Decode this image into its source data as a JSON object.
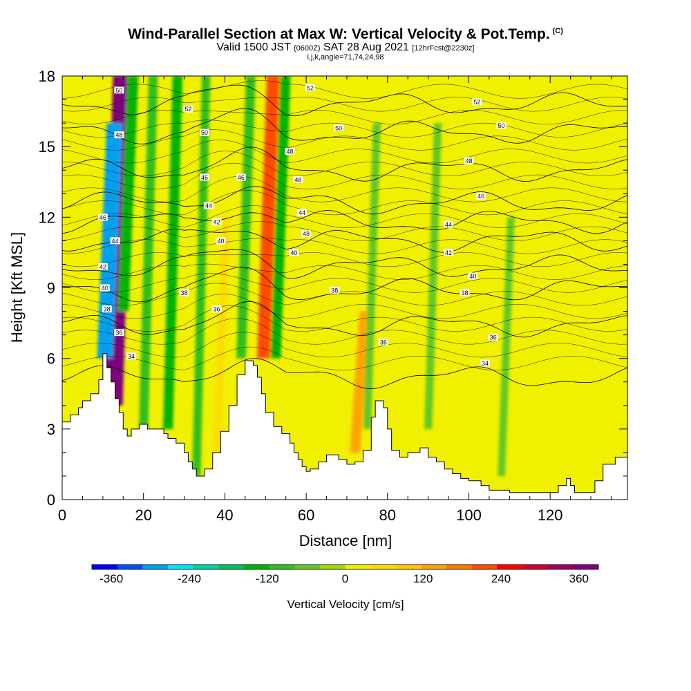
{
  "header": {
    "title": "Wind-Parallel Section at Max W: Vertical Velocity & Pot.Temp.",
    "copyright": "(C)",
    "valid_prefix": "Valid 1500 JST",
    "valid_utc": "(0600Z)",
    "valid_date": "SAT 28 Aug 2021",
    "forecast": "[12hrFcst@2230z]",
    "indices": "i,j,k,angle=71,74,24,98"
  },
  "chart_data": {
    "type": "heatmap",
    "xlabel": "Distance [nm]",
    "ylabel": "Height [Kft MSL]",
    "xlim": [
      0,
      139
    ],
    "ylim": [
      0,
      18
    ],
    "x_ticks": [
      0,
      20,
      40,
      60,
      80,
      100,
      120
    ],
    "y_ticks": [
      0,
      3,
      6,
      9,
      12,
      15,
      18
    ],
    "colorbar": {
      "label": "Vertical Velocity [cm/s]",
      "range": [
        -390,
        390
      ],
      "ticks": [
        -360,
        -240,
        -120,
        0,
        120,
        240,
        360
      ],
      "colors": [
        "#0000ff",
        "#0050f0",
        "#00a0f0",
        "#00e6ff",
        "#00d2a0",
        "#00c060",
        "#00b400",
        "#32be1e",
        "#64c828",
        "#a0dc00",
        "#f0f000",
        "#ffdc00",
        "#ffc800",
        "#ffa500",
        "#ff7800",
        "#ff4b00",
        "#ff0000",
        "#d20032",
        "#a00064",
        "#800080"
      ]
    },
    "terrain_profile": [
      [
        0,
        3.3
      ],
      [
        2,
        3.6
      ],
      [
        4,
        3.9
      ],
      [
        5,
        4.2
      ],
      [
        7,
        4.5
      ],
      [
        9,
        5.1
      ],
      [
        10,
        6.2
      ],
      [
        11,
        5.6
      ],
      [
        12,
        5.0
      ],
      [
        13,
        4.3
      ],
      [
        14,
        3.7
      ],
      [
        15,
        3.0
      ],
      [
        16,
        2.7
      ],
      [
        17,
        3.0
      ],
      [
        19,
        3.2
      ],
      [
        21,
        3.0
      ],
      [
        23,
        3.0
      ],
      [
        25,
        2.8
      ],
      [
        26,
        2.6
      ],
      [
        28,
        2.4
      ],
      [
        30,
        2.0
      ],
      [
        31,
        1.6
      ],
      [
        32,
        1.3
      ],
      [
        33,
        1.0
      ],
      [
        35,
        1.3
      ],
      [
        37,
        2.0
      ],
      [
        39,
        2.9
      ],
      [
        41,
        4.0
      ],
      [
        43,
        5.3
      ],
      [
        45,
        5.9
      ],
      [
        47,
        5.7
      ],
      [
        48,
        5.2
      ],
      [
        49,
        4.5
      ],
      [
        50,
        3.7
      ],
      [
        52,
        3.1
      ],
      [
        54,
        2.8
      ],
      [
        56,
        2.4
      ],
      [
        57,
        2.0
      ],
      [
        58,
        1.7
      ],
      [
        59,
        1.4
      ],
      [
        60,
        1.2
      ],
      [
        61,
        1.3
      ],
      [
        63,
        1.6
      ],
      [
        65,
        1.9
      ],
      [
        68,
        1.7
      ],
      [
        70,
        1.5
      ],
      [
        72,
        1.6
      ],
      [
        74,
        2.1
      ],
      [
        76,
        3.5
      ],
      [
        77,
        4.2
      ],
      [
        79,
        3.9
      ],
      [
        80,
        3.0
      ],
      [
        81,
        2.1
      ],
      [
        83,
        1.8
      ],
      [
        85,
        2.0
      ],
      [
        88,
        2.2
      ],
      [
        90,
        1.8
      ],
      [
        92,
        1.6
      ],
      [
        94,
        1.3
      ],
      [
        96,
        1.1
      ],
      [
        98,
        0.9
      ],
      [
        100,
        0.8
      ],
      [
        103,
        0.6
      ],
      [
        105,
        0.4
      ],
      [
        110,
        0.3
      ],
      [
        115,
        0.3
      ],
      [
        121,
        0.3
      ],
      [
        122,
        0.6
      ],
      [
        124,
        0.9
      ],
      [
        125,
        0.6
      ],
      [
        126,
        0.3
      ],
      [
        130,
        0.3
      ],
      [
        131,
        0.8
      ],
      [
        133,
        1.5
      ],
      [
        136,
        1.8
      ],
      [
        139,
        2.0
      ]
    ],
    "velocity_features": [
      {
        "x": 12.5,
        "z": [
          4,
          18
        ],
        "w": 380,
        "note": "updraft"
      },
      {
        "x": 10.5,
        "z": [
          6,
          16
        ],
        "w": -280,
        "note": "downdraft"
      },
      {
        "x": 15,
        "z": [
          8,
          18
        ],
        "w": -150
      },
      {
        "x": 20,
        "z": [
          3,
          18
        ],
        "w": -100
      },
      {
        "x": 26,
        "z": [
          3,
          18
        ],
        "w": -120
      },
      {
        "x": 33,
        "z": [
          1,
          18
        ],
        "w": -80
      },
      {
        "x": 38,
        "z": [
          2,
          12
        ],
        "w": 60
      },
      {
        "x": 44,
        "z": [
          6,
          18
        ],
        "w": -110
      },
      {
        "x": 49.5,
        "z": [
          6,
          18
        ],
        "w": 200
      },
      {
        "x": 52.5,
        "z": [
          6,
          18
        ],
        "w": -130
      },
      {
        "x": 72,
        "z": [
          2,
          8
        ],
        "w": 130
      },
      {
        "x": 75,
        "z": [
          3,
          16
        ],
        "w": -60
      },
      {
        "x": 90,
        "z": [
          3,
          16
        ],
        "w": -60
      },
      {
        "x": 108,
        "z": [
          1,
          12
        ],
        "w": -50
      }
    ],
    "theta_contours": [
      {
        "value": "34",
        "level": 5.2
      },
      {
        "value": "36",
        "level": 7.4
      },
      {
        "value": "38",
        "level": 8.9
      },
      {
        "value": "40",
        "level": 9.9
      },
      {
        "value": "42",
        "level": 11.0
      },
      {
        "value": "44",
        "level": 11.8
      },
      {
        "value": "46",
        "level": 12.6
      },
      {
        "value": "48",
        "level": 14.0
      },
      {
        "value": "50",
        "level": 15.6
      },
      {
        "value": "52",
        "level": 16.8
      }
    ],
    "contour_labels": [
      {
        "text": "50",
        "x": 14,
        "y": 17.4
      },
      {
        "text": "52",
        "x": 31,
        "y": 16.6
      },
      {
        "text": "50",
        "x": 35,
        "y": 15.6
      },
      {
        "text": "48",
        "x": 14,
        "y": 15.5
      },
      {
        "text": "46",
        "x": 35,
        "y": 13.7
      },
      {
        "text": "44",
        "x": 36,
        "y": 12.5
      },
      {
        "text": "42",
        "x": 38,
        "y": 11.8
      },
      {
        "text": "40",
        "x": 39,
        "y": 11.0
      },
      {
        "text": "46",
        "x": 44,
        "y": 13.7
      },
      {
        "text": "52",
        "x": 61,
        "y": 17.5
      },
      {
        "text": "48",
        "x": 56,
        "y": 14.8
      },
      {
        "text": "48",
        "x": 58,
        "y": 13.6
      },
      {
        "text": "44",
        "x": 59,
        "y": 12.2
      },
      {
        "text": "48",
        "x": 60,
        "y": 11.3
      },
      {
        "text": "40",
        "x": 57,
        "y": 10.5
      },
      {
        "text": "38",
        "x": 67,
        "y": 8.9
      },
      {
        "text": "50",
        "x": 68,
        "y": 15.8
      },
      {
        "text": "36",
        "x": 79,
        "y": 6.7
      },
      {
        "text": "52",
        "x": 102,
        "y": 16.9
      },
      {
        "text": "50",
        "x": 108,
        "y": 15.9
      },
      {
        "text": "48",
        "x": 100,
        "y": 14.4
      },
      {
        "text": "46",
        "x": 103,
        "y": 12.9
      },
      {
        "text": "44",
        "x": 95,
        "y": 11.7
      },
      {
        "text": "42",
        "x": 95,
        "y": 10.5
      },
      {
        "text": "40",
        "x": 101,
        "y": 9.5
      },
      {
        "text": "38",
        "x": 99,
        "y": 8.8
      },
      {
        "text": "36",
        "x": 106,
        "y": 6.9
      },
      {
        "text": "34",
        "x": 104,
        "y": 5.8
      },
      {
        "text": "46",
        "x": 10,
        "y": 12.0
      },
      {
        "text": "44",
        "x": 13,
        "y": 11.0
      },
      {
        "text": "42",
        "x": 10,
        "y": 9.9
      },
      {
        "text": "40",
        "x": 10.5,
        "y": 9.0
      },
      {
        "text": "38",
        "x": 11,
        "y": 8.1
      },
      {
        "text": "36",
        "x": 14,
        "y": 7.1
      },
      {
        "text": "34",
        "x": 17,
        "y": 6.1
      },
      {
        "text": "38",
        "x": 30,
        "y": 8.8
      },
      {
        "text": "36",
        "x": 38,
        "y": 8.1
      }
    ]
  }
}
